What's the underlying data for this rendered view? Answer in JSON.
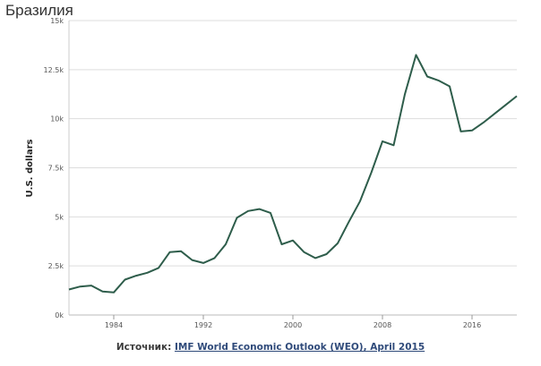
{
  "chart_data": {
    "type": "line",
    "title": "Бразилия",
    "xlabel": "",
    "ylabel": "U.S. dollars",
    "xlim": [
      1980,
      2020
    ],
    "ylim": [
      0,
      15000
    ],
    "grid": true,
    "y_ticks": [
      0,
      2500,
      5000,
      7500,
      10000,
      12500,
      15000
    ],
    "y_tick_labels": [
      "0k",
      "2.5k",
      "5k",
      "7.5k",
      "10k",
      "12.5k",
      "15k"
    ],
    "x_ticks": [
      1984,
      1992,
      2000,
      2008,
      2016
    ],
    "x_tick_labels": [
      "1984",
      "1992",
      "2000",
      "2008",
      "2016"
    ],
    "line_color": "#2e5d4b",
    "series": [
      {
        "name": "Бразилия",
        "x": [
          1980,
          1981,
          1982,
          1983,
          1984,
          1985,
          1986,
          1987,
          1988,
          1989,
          1990,
          1991,
          1992,
          1993,
          1994,
          1995,
          1996,
          1997,
          1998,
          1999,
          2000,
          2001,
          2002,
          2003,
          2004,
          2005,
          2006,
          2007,
          2008,
          2009,
          2010,
          2011,
          2012,
          2013,
          2014,
          2015,
          2016,
          2017,
          2018,
          2019,
          2020
        ],
        "values": [
          1300,
          1450,
          1500,
          1200,
          1150,
          1800,
          2000,
          2150,
          2400,
          3200,
          3250,
          2800,
          2650,
          2900,
          3600,
          4950,
          5300,
          5400,
          5200,
          3600,
          3800,
          3200,
          2900,
          3100,
          3650,
          4750,
          5800,
          7250,
          8850,
          8650,
          11250,
          13250,
          12150,
          11950,
          11650,
          9350,
          9400,
          9800,
          10250,
          10700,
          11150
        ]
      }
    ]
  },
  "source": {
    "label": "Источник:",
    "link_text": "IMF World Economic Outlook (WEO), April 2015"
  }
}
